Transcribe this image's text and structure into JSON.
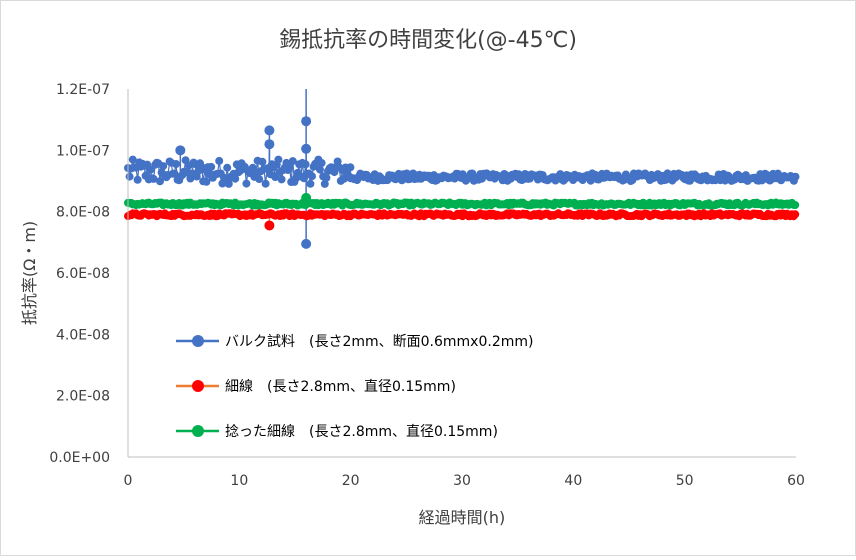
{
  "chart_data": {
    "type": "scatter",
    "title": "錫抵抗率の時間変化(@-45℃)",
    "xlabel": "経過時間(h)",
    "ylabel": "抵抗率(Ω・m)",
    "xlim": [
      0,
      60
    ],
    "ylim": [
      0,
      1.2e-07
    ],
    "x_ticks": [
      0,
      10,
      20,
      30,
      40,
      50,
      60
    ],
    "x_tick_labels": [
      "0",
      "10",
      "20",
      "30",
      "40",
      "50",
      "60"
    ],
    "y_ticks": [
      0,
      2e-08,
      4e-08,
      6e-08,
      8e-08,
      1e-07,
      1.2e-07
    ],
    "y_tick_labels": [
      "0.0E+00",
      "2.0E-08",
      "4.0E-08",
      "6.0E-08",
      "8.0E-08",
      "1.0E-07",
      "1.2E-07"
    ],
    "grid": false,
    "legend_position": "inside-lower-left",
    "series": [
      {
        "name": "バルク試料　(長さ2mm、断面0.6mmx0.2mm)",
        "color": "#4472c4",
        "bands": [
          {
            "x_range": [
              0,
              20
            ],
            "y_range": [
              8.9e-08,
              9.7e-08
            ]
          },
          {
            "x_range": [
              20,
              60
            ],
            "y_range": [
              9e-08,
              9.25e-08
            ]
          }
        ],
        "outliers": [
          {
            "x": 4.7,
            "y": 1e-07
          },
          {
            "x": 12.7,
            "y": 1.065e-07
          },
          {
            "x": 12.7,
            "y": 1.02e-07
          },
          {
            "x": 16.0,
            "y": 1.095e-07
          },
          {
            "x": 16.0,
            "y": 1.005e-07
          },
          {
            "x": 16.0,
            "y": 6.95e-08
          }
        ]
      },
      {
        "name": "細線　(長さ2.8mm、直径0.15mm)",
        "color": "#ff0000",
        "line_color": "#ed7d31",
        "bands": [
          {
            "x_range": [
              0,
              60
            ],
            "y_range": [
              7.85e-08,
              7.95e-08
            ]
          }
        ],
        "outliers": [
          {
            "x": 12.7,
            "y": 7.55e-08
          }
        ]
      },
      {
        "name": "捻った細線　(長さ2.8mm、直径0.15mm)",
        "color": "#00b050",
        "bands": [
          {
            "x_range": [
              0,
              60
            ],
            "y_range": [
              8.2e-08,
              8.3e-08
            ]
          }
        ],
        "outliers": [
          {
            "x": 16.0,
            "y": 8.45e-08
          }
        ]
      }
    ]
  }
}
